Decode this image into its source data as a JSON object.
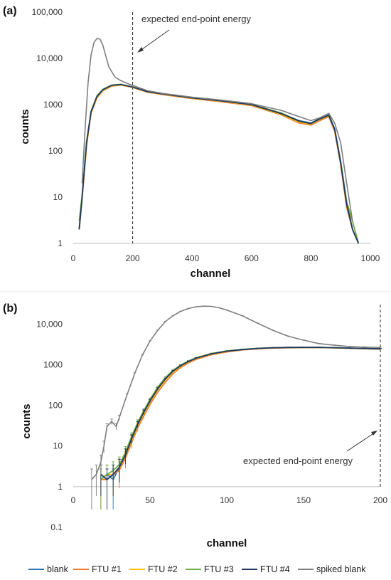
{
  "colors": {
    "blank": "#2e75b6",
    "ftu1": "#ed7d31",
    "ftu2": "#ffc000",
    "ftu3": "#70ad47",
    "ftu4": "#1f3864",
    "spiked": "#7f7f7f"
  },
  "legend": [
    {
      "key": "blank",
      "label": "blank"
    },
    {
      "key": "ftu1",
      "label": "FTU #1"
    },
    {
      "key": "ftu2",
      "label": "FTU #2"
    },
    {
      "key": "ftu3",
      "label": "FTU #3"
    },
    {
      "key": "ftu4",
      "label": "FTU #4"
    },
    {
      "key": "spiked",
      "label": "spiked blank"
    }
  ],
  "chart_data": [
    {
      "type": "line",
      "panel_label": "(a)",
      "xlabel": "channel",
      "ylabel": "counts",
      "xlim": [
        0,
        1000
      ],
      "ylim": [
        1,
        100000
      ],
      "yscale": "log",
      "xticks": [
        0,
        200,
        400,
        600,
        800,
        1000
      ],
      "yticks": [
        1,
        10,
        100,
        1000,
        10000,
        100000
      ],
      "ytick_labels": [
        "1",
        "10",
        "100",
        "1000",
        "10,000",
        "100,000"
      ],
      "annotation": {
        "text": "expected end-point energy",
        "x": 200
      },
      "grid": false,
      "series": [
        {
          "name": "blank",
          "key": "blank",
          "x": [
            20,
            30,
            45,
            60,
            80,
            100,
            130,
            160,
            200,
            250,
            300,
            400,
            500,
            600,
            700,
            760,
            800,
            830,
            860,
            880,
            900,
            920,
            940,
            960
          ],
          "y": [
            2,
            10,
            150,
            700,
            1500,
            2100,
            2600,
            2700,
            2400,
            1900,
            1700,
            1400,
            1200,
            1000,
            650,
            450,
            400,
            500,
            600,
            300,
            60,
            8,
            2,
            1
          ]
        },
        {
          "name": "FTU #1",
          "key": "ftu1",
          "x": [
            20,
            30,
            45,
            60,
            80,
            100,
            130,
            160,
            200,
            250,
            300,
            400,
            500,
            600,
            700,
            760,
            800,
            830,
            860,
            880,
            900,
            920,
            940,
            960
          ],
          "y": [
            2,
            9,
            130,
            650,
            1400,
            2000,
            2500,
            2650,
            2350,
            1850,
            1650,
            1350,
            1150,
            950,
            600,
            400,
            360,
            450,
            550,
            260,
            50,
            6,
            2,
            1
          ]
        },
        {
          "name": "FTU #2",
          "key": "ftu2",
          "x": [
            20,
            30,
            45,
            60,
            80,
            100,
            130,
            160,
            200,
            250,
            300,
            400,
            500,
            600,
            700,
            760,
            800,
            830,
            860,
            880,
            900,
            920,
            940,
            960
          ],
          "y": [
            2,
            10,
            140,
            680,
            1450,
            2050,
            2550,
            2680,
            2380,
            1880,
            1680,
            1380,
            1180,
            980,
            620,
            420,
            380,
            480,
            580,
            280,
            55,
            7,
            2,
            1
          ]
        },
        {
          "name": "FTU #3",
          "key": "ftu3",
          "x": [
            20,
            30,
            45,
            60,
            80,
            100,
            130,
            160,
            200,
            250,
            300,
            400,
            500,
            600,
            700,
            760,
            800,
            830,
            860,
            880,
            900,
            920,
            940,
            960
          ],
          "y": [
            3,
            11,
            160,
            720,
            1550,
            2150,
            2650,
            2750,
            2420,
            1920,
            1720,
            1420,
            1220,
            1010,
            660,
            440,
            390,
            490,
            590,
            290,
            58,
            8,
            3,
            1
          ]
        },
        {
          "name": "FTU #4",
          "key": "ftu4",
          "x": [
            20,
            30,
            45,
            60,
            80,
            100,
            130,
            160,
            200,
            250,
            300,
            400,
            500,
            600,
            700,
            760,
            800,
            830,
            860,
            880,
            900,
            920,
            940,
            960
          ],
          "y": [
            2,
            10,
            150,
            700,
            1500,
            2100,
            2620,
            2720,
            2400,
            1900,
            1700,
            1400,
            1200,
            1000,
            640,
            440,
            390,
            490,
            590,
            290,
            55,
            7,
            2,
            1
          ]
        },
        {
          "name": "spiked blank",
          "key": "spiked",
          "x": [
            30,
            40,
            50,
            60,
            70,
            80,
            90,
            100,
            110,
            120,
            140,
            160,
            180,
            200,
            250,
            300,
            400,
            500,
            600,
            700,
            760,
            800,
            830,
            860,
            880,
            900,
            920,
            940
          ],
          "y": [
            20,
            300,
            3000,
            12000,
            22000,
            27000,
            26000,
            19000,
            11000,
            6500,
            4000,
            3300,
            2900,
            2600,
            2000,
            1750,
            1450,
            1250,
            1050,
            750,
            550,
            450,
            520,
            650,
            400,
            150,
            20,
            3
          ]
        }
      ]
    },
    {
      "type": "line",
      "panel_label": "(b)",
      "xlabel": "channel",
      "ylabel": "counts",
      "xlim": [
        0,
        200
      ],
      "ylim": [
        0.1,
        30000
      ],
      "yscale": "log",
      "xticks": [
        0,
        50,
        100,
        150,
        200
      ],
      "yticks": [
        0.1,
        1,
        10,
        100,
        1000,
        10000
      ],
      "ytick_labels": [
        "0.1",
        "1",
        "10",
        "100",
        "1000",
        "10,000"
      ],
      "annotation": {
        "text": "expected end-point energy",
        "x": 200
      },
      "error_bars": true,
      "grid": false,
      "series": [
        {
          "name": "blank",
          "key": "blank",
          "x": [
            18,
            22,
            26,
            30,
            34,
            38,
            42,
            46,
            50,
            55,
            60,
            65,
            70,
            75,
            80,
            90,
            100,
            110,
            120,
            130,
            140,
            150,
            160,
            170,
            180,
            190,
            200
          ],
          "y": [
            1.5,
            2,
            1.5,
            3,
            6,
            15,
            35,
            70,
            130,
            260,
            450,
            700,
            950,
            1200,
            1450,
            1850,
            2150,
            2350,
            2500,
            2600,
            2650,
            2650,
            2650,
            2600,
            2550,
            2500,
            2450
          ]
        },
        {
          "name": "FTU #1",
          "key": "ftu1",
          "x": [
            18,
            22,
            26,
            30,
            34,
            38,
            42,
            46,
            50,
            55,
            60,
            65,
            70,
            75,
            80,
            90,
            100,
            110,
            120,
            130,
            140,
            150,
            160,
            170,
            180,
            190,
            200
          ],
          "y": [
            1.5,
            1.5,
            2,
            2.5,
            5,
            12,
            28,
            55,
            105,
            210,
            370,
            600,
            850,
            1100,
            1350,
            1750,
            2050,
            2300,
            2450,
            2550,
            2600,
            2620,
            2620,
            2580,
            2520,
            2470,
            2400
          ]
        },
        {
          "name": "FTU #2",
          "key": "ftu2",
          "x": [
            18,
            22,
            26,
            30,
            34,
            38,
            42,
            46,
            50,
            55,
            60,
            65,
            70,
            75,
            80,
            90,
            100,
            110,
            120,
            130,
            140,
            150,
            160,
            170,
            180,
            190,
            200
          ],
          "y": [
            1.5,
            2,
            2,
            3,
            6,
            14,
            32,
            65,
            120,
            240,
            420,
            670,
            920,
            1170,
            1420,
            1820,
            2120,
            2330,
            2480,
            2580,
            2630,
            2640,
            2640,
            2600,
            2540,
            2490,
            2430
          ]
        },
        {
          "name": "FTU #3",
          "key": "ftu3",
          "x": [
            18,
            22,
            26,
            30,
            34,
            38,
            42,
            46,
            50,
            55,
            60,
            65,
            70,
            75,
            80,
            90,
            100,
            110,
            120,
            130,
            140,
            150,
            160,
            170,
            180,
            190,
            200
          ],
          "y": [
            1.5,
            2,
            2.5,
            3.5,
            7,
            17,
            38,
            75,
            140,
            280,
            480,
            730,
            980,
            1230,
            1480,
            1880,
            2180,
            2380,
            2520,
            2620,
            2660,
            2670,
            2660,
            2620,
            2560,
            2510,
            2460
          ]
        },
        {
          "name": "FTU #4",
          "key": "ftu4",
          "x": [
            18,
            22,
            26,
            30,
            34,
            38,
            42,
            46,
            50,
            55,
            60,
            65,
            70,
            75,
            80,
            90,
            100,
            110,
            120,
            130,
            140,
            150,
            160,
            170,
            180,
            190,
            200
          ],
          "y": [
            2,
            1.5,
            2,
            3,
            6,
            15,
            34,
            68,
            128,
            255,
            445,
            695,
            945,
            1195,
            1445,
            1845,
            2145,
            2345,
            2495,
            2595,
            2645,
            2655,
            2650,
            2610,
            2550,
            2500,
            2450
          ]
        },
        {
          "name": "spiked blank",
          "key": "spiked",
          "x": [
            12,
            15,
            18,
            20,
            22,
            25,
            28,
            30,
            35,
            40,
            45,
            50,
            55,
            60,
            65,
            70,
            75,
            80,
            85,
            90,
            95,
            100,
            110,
            120,
            130,
            140,
            150,
            160,
            170,
            180,
            190,
            200
          ],
          "y": [
            1.5,
            2,
            4,
            10,
            30,
            40,
            30,
            50,
            180,
            600,
            1700,
            3800,
            7000,
            11500,
            16000,
            20500,
            24000,
            26500,
            27500,
            27000,
            25000,
            22000,
            16000,
            10500,
            7000,
            5000,
            4000,
            3300,
            3000,
            2800,
            2700,
            2650
          ]
        }
      ]
    }
  ]
}
